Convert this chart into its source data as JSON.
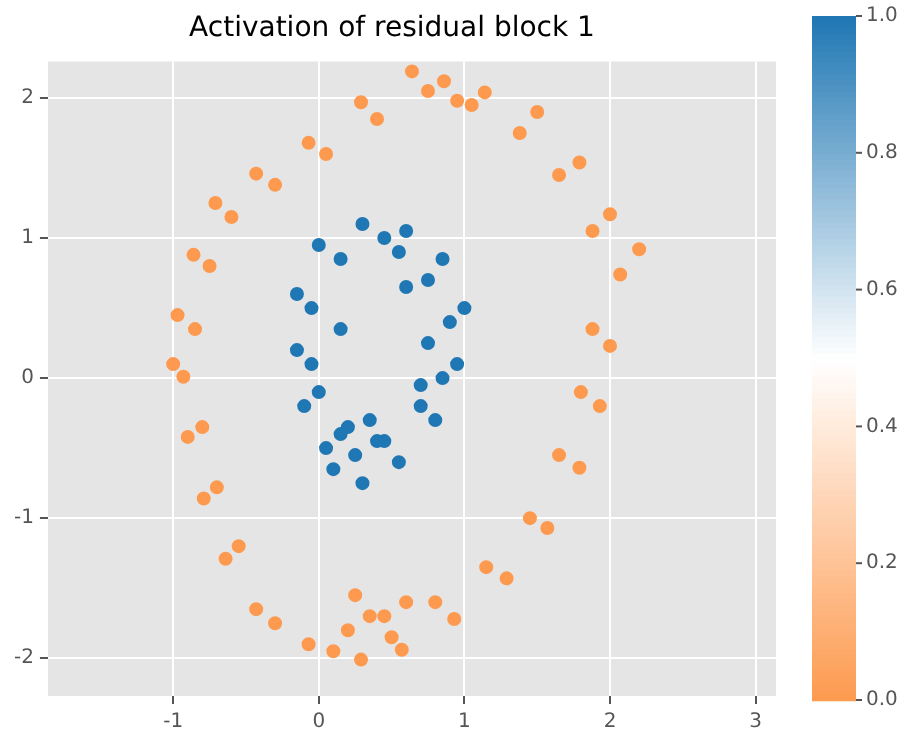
{
  "chart_data": {
    "type": "scatter",
    "title": "Activation of residual block 1",
    "xlim": [
      -1.86,
      3.14
    ],
    "xticks": [
      -1,
      0,
      1,
      2,
      3
    ],
    "ylim": [
      -2.27,
      2.26
    ],
    "yticks": [
      -2,
      -1,
      0,
      1,
      2
    ],
    "grid": true,
    "marker": "circle",
    "clim": [
      0,
      1
    ],
    "cticks": [
      {
        "value": 0,
        "label": "0.0"
      },
      {
        "value": 0.2,
        "label": "0.2"
      },
      {
        "value": 0.4,
        "label": "0.4"
      },
      {
        "value": 0.6,
        "label": "0.6"
      },
      {
        "value": 0.8,
        "label": "0.8"
      },
      {
        "value": 1,
        "label": "1.0"
      }
    ],
    "series": [
      {
        "x": [
          0.64,
          0.75,
          0.29,
          0.4,
          -0.07,
          0.05,
          -0.43,
          -0.3,
          -0.71,
          -0.6,
          -0.86,
          -0.75,
          -0.97,
          -0.85,
          -0.93,
          -1.0,
          -0.9,
          -0.8,
          -0.79,
          -0.7,
          -0.64,
          -0.55,
          -0.43,
          -0.3,
          -0.07,
          0.1,
          0.29,
          0.2,
          0.57,
          0.45,
          0.93,
          0.8,
          1.29,
          1.15,
          1.57,
          1.45,
          1.79,
          1.65,
          1.93,
          1.8,
          2.0,
          1.88,
          2.07,
          2.2,
          2.0,
          1.88,
          1.79,
          1.65,
          1.5,
          1.38,
          1.14,
          1.05,
          0.86,
          0.95,
          0.5,
          0.6,
          0.35,
          0.25
        ],
        "values": [
          2.19,
          2.05,
          1.97,
          1.85,
          1.68,
          1.6,
          1.46,
          1.38,
          1.25,
          1.15,
          0.88,
          0.8,
          0.45,
          0.35,
          0.01,
          0.1,
          -0.42,
          -0.35,
          -0.86,
          -0.78,
          -1.29,
          -1.2,
          -1.65,
          -1.75,
          -1.9,
          -1.95,
          -2.01,
          -1.8,
          -1.94,
          -1.7,
          -1.72,
          -1.6,
          -1.43,
          -1.35,
          -1.07,
          -1.0,
          -0.64,
          -0.55,
          -0.2,
          -0.1,
          0.23,
          0.35,
          0.74,
          0.92,
          1.17,
          1.05,
          1.54,
          1.45,
          1.9,
          1.75,
          2.04,
          1.95,
          2.12,
          1.98,
          -1.85,
          -1.6,
          -1.7,
          -1.55
        ],
        "cvalues": [
          0,
          0,
          0,
          0,
          0,
          0,
          0,
          0,
          0,
          0,
          0,
          0,
          0,
          0,
          0,
          0,
          0,
          0,
          0,
          0,
          0,
          0,
          0,
          0,
          0,
          0,
          0,
          0,
          0,
          0,
          0,
          0,
          0,
          0,
          0,
          0,
          0,
          0,
          0,
          0,
          0,
          0,
          0,
          0,
          0,
          0,
          0,
          0,
          0,
          0,
          0,
          0,
          0,
          0,
          0,
          0,
          0,
          0
        ]
      },
      {
        "x": [
          0.3,
          0.45,
          0.0,
          0.15,
          -0.15,
          -0.05,
          -0.15,
          -0.05,
          -0.1,
          0.0,
          0.05,
          0.15,
          0.3,
          0.25,
          0.55,
          0.45,
          0.8,
          0.7,
          0.95,
          0.85,
          1.0,
          0.9,
          0.85,
          0.75,
          0.6,
          0.55,
          0.2,
          0.35,
          0.4,
          0.1,
          0.6,
          0.75,
          0.7,
          0.15
        ],
        "values": [
          1.1,
          1.0,
          0.95,
          0.85,
          0.6,
          0.5,
          0.2,
          0.1,
          -0.2,
          -0.1,
          -0.5,
          -0.4,
          -0.75,
          -0.55,
          -0.6,
          -0.45,
          -0.3,
          -0.2,
          0.1,
          0.0,
          0.5,
          0.4,
          0.85,
          0.7,
          1.05,
          0.9,
          -0.35,
          -0.3,
          -0.45,
          -0.65,
          0.65,
          0.25,
          -0.05,
          0.35
        ],
        "cvalues": [
          1,
          1,
          1,
          1,
          1,
          1,
          1,
          1,
          1,
          1,
          1,
          1,
          1,
          1,
          1,
          1,
          1,
          1,
          1,
          1,
          1,
          1,
          1,
          1,
          1,
          1,
          1,
          1,
          1,
          1,
          1,
          1,
          1,
          1
        ]
      }
    ]
  }
}
